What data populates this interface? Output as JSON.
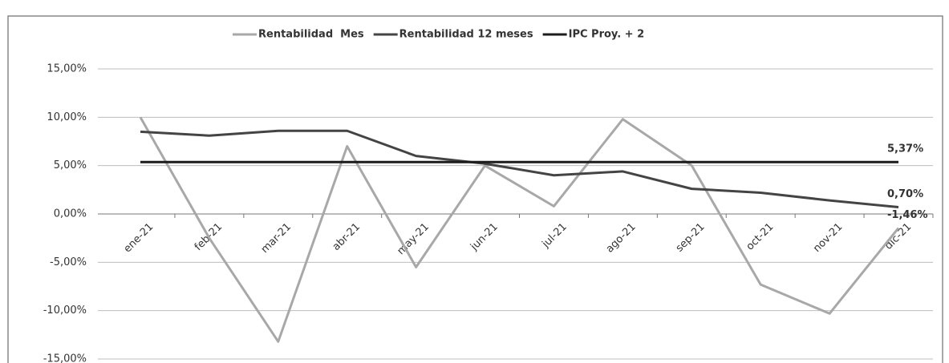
{
  "chart_data": {
    "type": "line",
    "categories": [
      "ene-21",
      "feb-21",
      "mar-21",
      "abr-21",
      "may-21",
      "jun-21",
      "jul-21",
      "ago-21",
      "sep-21",
      "oct-21",
      "nov-21",
      "dic-21"
    ],
    "series": [
      {
        "name": "Rentabilidad  Mes",
        "color": "#a8a8a8",
        "values": [
          10,
          -2.5,
          -13.2,
          7,
          -5.5,
          5,
          0.8,
          9.8,
          5,
          -7.3,
          -10.3,
          -1.46
        ],
        "value_labels": [
          null,
          null,
          null,
          null,
          null,
          null,
          null,
          null,
          null,
          null,
          null,
          "-1,46%"
        ]
      },
      {
        "name": "Rentabilidad 12 meses",
        "color": "#444444",
        "values": [
          8.5,
          8.1,
          8.6,
          8.6,
          6.0,
          5.2,
          4.0,
          4.4,
          2.6,
          2.2,
          1.4,
          0.7
        ],
        "value_labels": [
          null,
          null,
          null,
          null,
          null,
          null,
          null,
          null,
          null,
          null,
          null,
          "0,70%"
        ]
      },
      {
        "name": "IPC Proy. + 2",
        "color": "#1c1c1c",
        "values": [
          5.37,
          5.37,
          5.37,
          5.37,
          5.37,
          5.37,
          5.37,
          5.37,
          5.37,
          5.37,
          5.37,
          5.37
        ],
        "value_labels": [
          null,
          null,
          null,
          null,
          null,
          null,
          null,
          null,
          null,
          null,
          null,
          "5,37%"
        ]
      }
    ],
    "ylim": [
      -15,
      15
    ],
    "yticks": [
      {
        "value": 15,
        "label": "15,00%"
      },
      {
        "value": 10,
        "label": "10,00%"
      },
      {
        "value": 5,
        "label": "5,00%"
      },
      {
        "value": 0,
        "label": "0,00%"
      },
      {
        "value": -5,
        "label": "-5,00%"
      },
      {
        "value": -10,
        "label": "-10,00%"
      },
      {
        "value": -15,
        "label": "-15,00%"
      }
    ],
    "grid": true,
    "legend": "top"
  }
}
